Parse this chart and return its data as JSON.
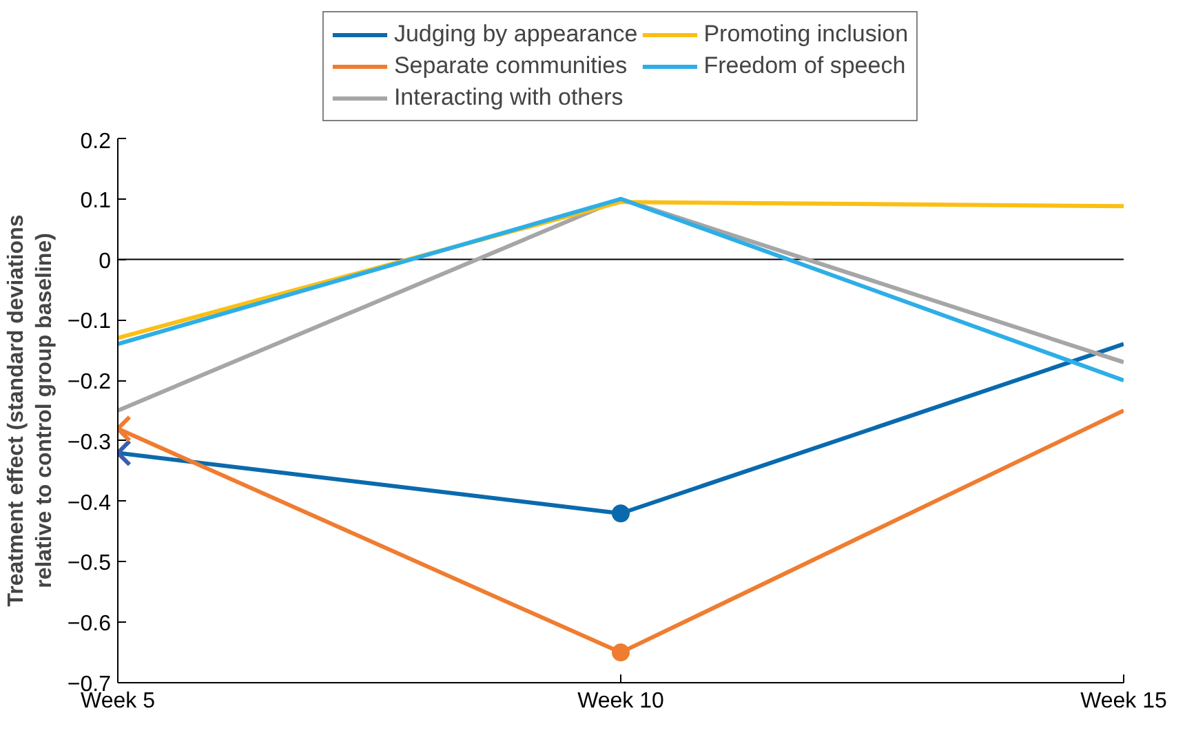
{
  "chart_data": {
    "type": "line",
    "ylabel": "Treatment effect (standard deviations\nrelative to control group baseline)",
    "categories": [
      "Week 5",
      "Week 10",
      "Week 15"
    ],
    "ylim": [
      -0.7,
      0.2
    ],
    "yticks": [
      0.2,
      0.1,
      0,
      {
        "value": -0.1,
        "label": "−0.1"
      },
      {
        "value": -0.2,
        "label": "−0.2"
      },
      {
        "value": -0.3,
        "label": "−0.3"
      },
      {
        "value": -0.4,
        "label": "−0.4"
      },
      {
        "value": -0.5,
        "label": "−0.5"
      },
      {
        "value": -0.6,
        "label": "−0.6"
      },
      {
        "value": -0.7,
        "label": "−0.7"
      }
    ],
    "grid": false,
    "legend": "top",
    "line_style": "solid",
    "ref_lines": [
      {
        "axis": "y",
        "value": 0,
        "color": "#000000"
      }
    ],
    "series": [
      {
        "name": "Judging by appearance",
        "color": "#0a6aad",
        "values": [
          -0.32,
          -0.42,
          -0.14
        ]
      },
      {
        "name": "Separate communities",
        "color": "#ef7d31",
        "values": [
          -0.28,
          -0.65,
          -0.25
        ]
      },
      {
        "name": "Interacting with others",
        "color": "#a6a6a6",
        "values": [
          -0.25,
          0.1,
          -0.17
        ]
      },
      {
        "name": "Promoting inclusion",
        "color": "#fbbf14",
        "values": [
          -0.13,
          0.095,
          0.088
        ]
      },
      {
        "name": "Freedom of speech",
        "color": "#2eaee6",
        "values": [
          -0.14,
          0.1,
          -0.2
        ]
      },
      {
        "type": "scatter",
        "marker": "cross",
        "color": "#3a5fb0",
        "values": [
          -0.32,
          null,
          null
        ]
      },
      {
        "type": "scatter",
        "marker": "cross",
        "color": "#ef7d31",
        "values": [
          -0.28,
          null,
          null
        ]
      },
      {
        "type": "scatter",
        "marker": "circle",
        "color": "#0a6aad",
        "values": [
          null,
          -0.42,
          null
        ]
      },
      {
        "type": "scatter",
        "marker": "circle",
        "color": "#ef7d31",
        "values": [
          null,
          -0.65,
          null
        ]
      }
    ]
  }
}
